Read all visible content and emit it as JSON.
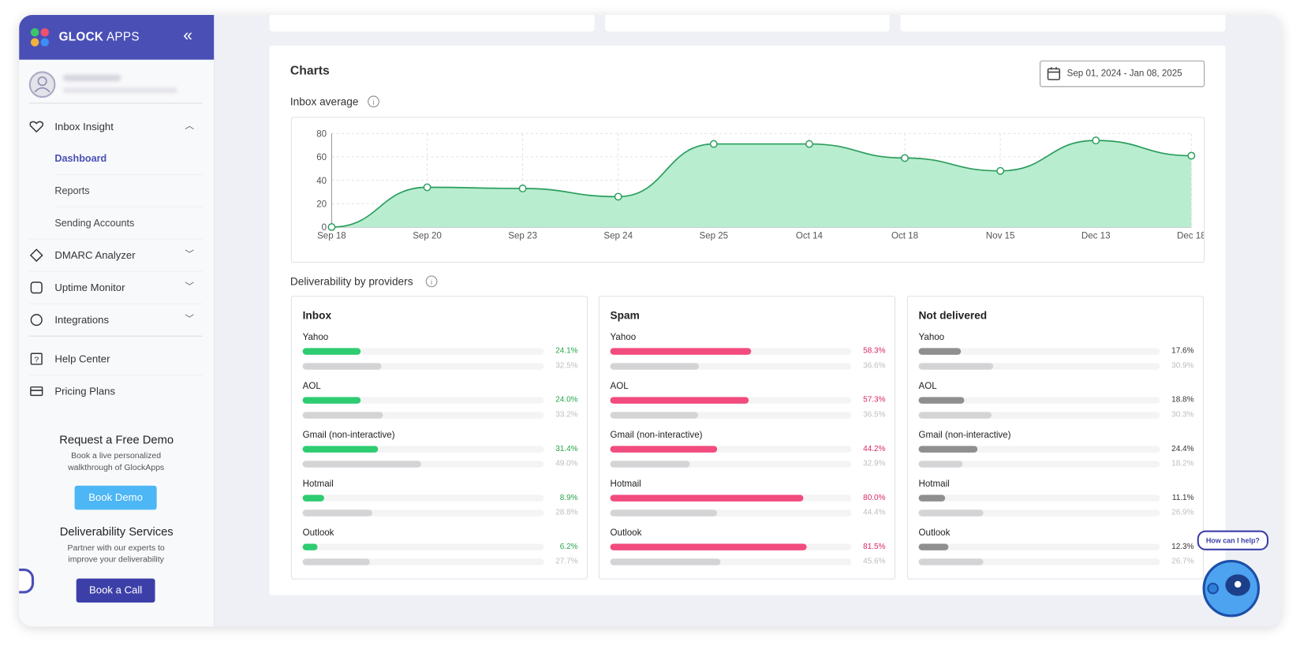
{
  "sidebar": {
    "brand": "GLOCK",
    "brand_suffix": "APPS",
    "nav": {
      "inbox_insight": "Inbox Insight",
      "dashboard": "Dashboard",
      "reports": "Reports",
      "sending_accounts": "Sending Accounts",
      "dmarc": "DMARC Analyzer",
      "uptime": "Uptime Monitor",
      "integrations": "Integrations",
      "help": "Help Center",
      "pricing": "Pricing Plans"
    },
    "promos": [
      {
        "title": "Request a Free Demo",
        "text": "Book a live personalized walkthrough of GlockApps",
        "button": "Book Demo"
      },
      {
        "title": "Deliverability Services",
        "text": "Partner with our experts to improve your deliverability",
        "button": "Book a Call"
      }
    ]
  },
  "section_title": "Charts",
  "date_range": "Sep 01, 2024 - Jan 08, 2025",
  "chart_data": {
    "type": "area",
    "title": "Inbox average",
    "categories": [
      "Sep 18",
      "Sep 20",
      "Sep 23",
      "Sep 24",
      "Sep 25",
      "Oct 14",
      "Oct 18",
      "Nov 15",
      "Dec 13",
      "Dec 18"
    ],
    "values": [
      0,
      34,
      33,
      26,
      71,
      71,
      59,
      48,
      74,
      61
    ],
    "color": "#2a9d5c",
    "fill": "#b8edd0",
    "ylim": [
      0,
      80
    ],
    "yticks": [
      0,
      20,
      40,
      60,
      80
    ],
    "grid": true
  },
  "providers": {
    "title": "Deliverability by providers",
    "panels": [
      {
        "title": "Inbox",
        "color": "#2ecc71",
        "text_color": "#27a54a",
        "rows": [
          {
            "name": "Yahoo",
            "value": 24.1,
            "value_label": "24.1%",
            "previous": 32.5,
            "previous_label": "32.5%"
          },
          {
            "name": "AOL",
            "value": 24.0,
            "value_label": "24.0%",
            "previous": 33.2,
            "previous_label": "33.2%"
          },
          {
            "name": "Gmail (non-interactive)",
            "value": 31.4,
            "value_label": "31.4%",
            "previous": 49.0,
            "previous_label": "49.0%"
          },
          {
            "name": "Hotmail",
            "value": 8.9,
            "value_label": "8.9%",
            "previous": 28.8,
            "previous_label": "28.8%"
          },
          {
            "name": "Outlook",
            "value": 6.2,
            "value_label": "6.2%",
            "previous": 27.7,
            "previous_label": "27.7%"
          }
        ]
      },
      {
        "title": "Spam",
        "color": "#f24b7d",
        "text_color": "#d92660",
        "rows": [
          {
            "name": "Yahoo",
            "value": 58.3,
            "value_label": "58.3%",
            "previous": 36.6,
            "previous_label": "36.6%"
          },
          {
            "name": "AOL",
            "value": 57.3,
            "value_label": "57.3%",
            "previous": 36.5,
            "previous_label": "36.5%"
          },
          {
            "name": "Gmail (non-interactive)",
            "value": 44.2,
            "value_label": "44.2%",
            "previous": 32.9,
            "previous_label": "32.9%"
          },
          {
            "name": "Hotmail",
            "value": 80.0,
            "value_label": "80.0%",
            "previous": 44.4,
            "previous_label": "44.4%"
          },
          {
            "name": "Outlook",
            "value": 81.5,
            "value_label": "81.5%",
            "previous": 45.6,
            "previous_label": "45.6%"
          }
        ]
      },
      {
        "title": "Not delivered",
        "color": "#8f8f8f",
        "text_color": "#333333",
        "rows": [
          {
            "name": "Yahoo",
            "value": 17.6,
            "value_label": "17.6%",
            "previous": 30.9,
            "previous_label": "30.9%"
          },
          {
            "name": "AOL",
            "value": 18.8,
            "value_label": "18.8%",
            "previous": 30.3,
            "previous_label": "30.3%"
          },
          {
            "name": "Gmail (non-interactive)",
            "value": 24.4,
            "value_label": "24.4%",
            "previous": 18.2,
            "previous_label": "18.2%"
          },
          {
            "name": "Hotmail",
            "value": 11.1,
            "value_label": "11.1%",
            "previous": 26.9,
            "previous_label": "26.9%"
          },
          {
            "name": "Outlook",
            "value": 12.3,
            "value_label": "12.3%",
            "previous": 26.7,
            "previous_label": "26.7%"
          }
        ]
      }
    ]
  },
  "help_bubble": "How can I help?"
}
